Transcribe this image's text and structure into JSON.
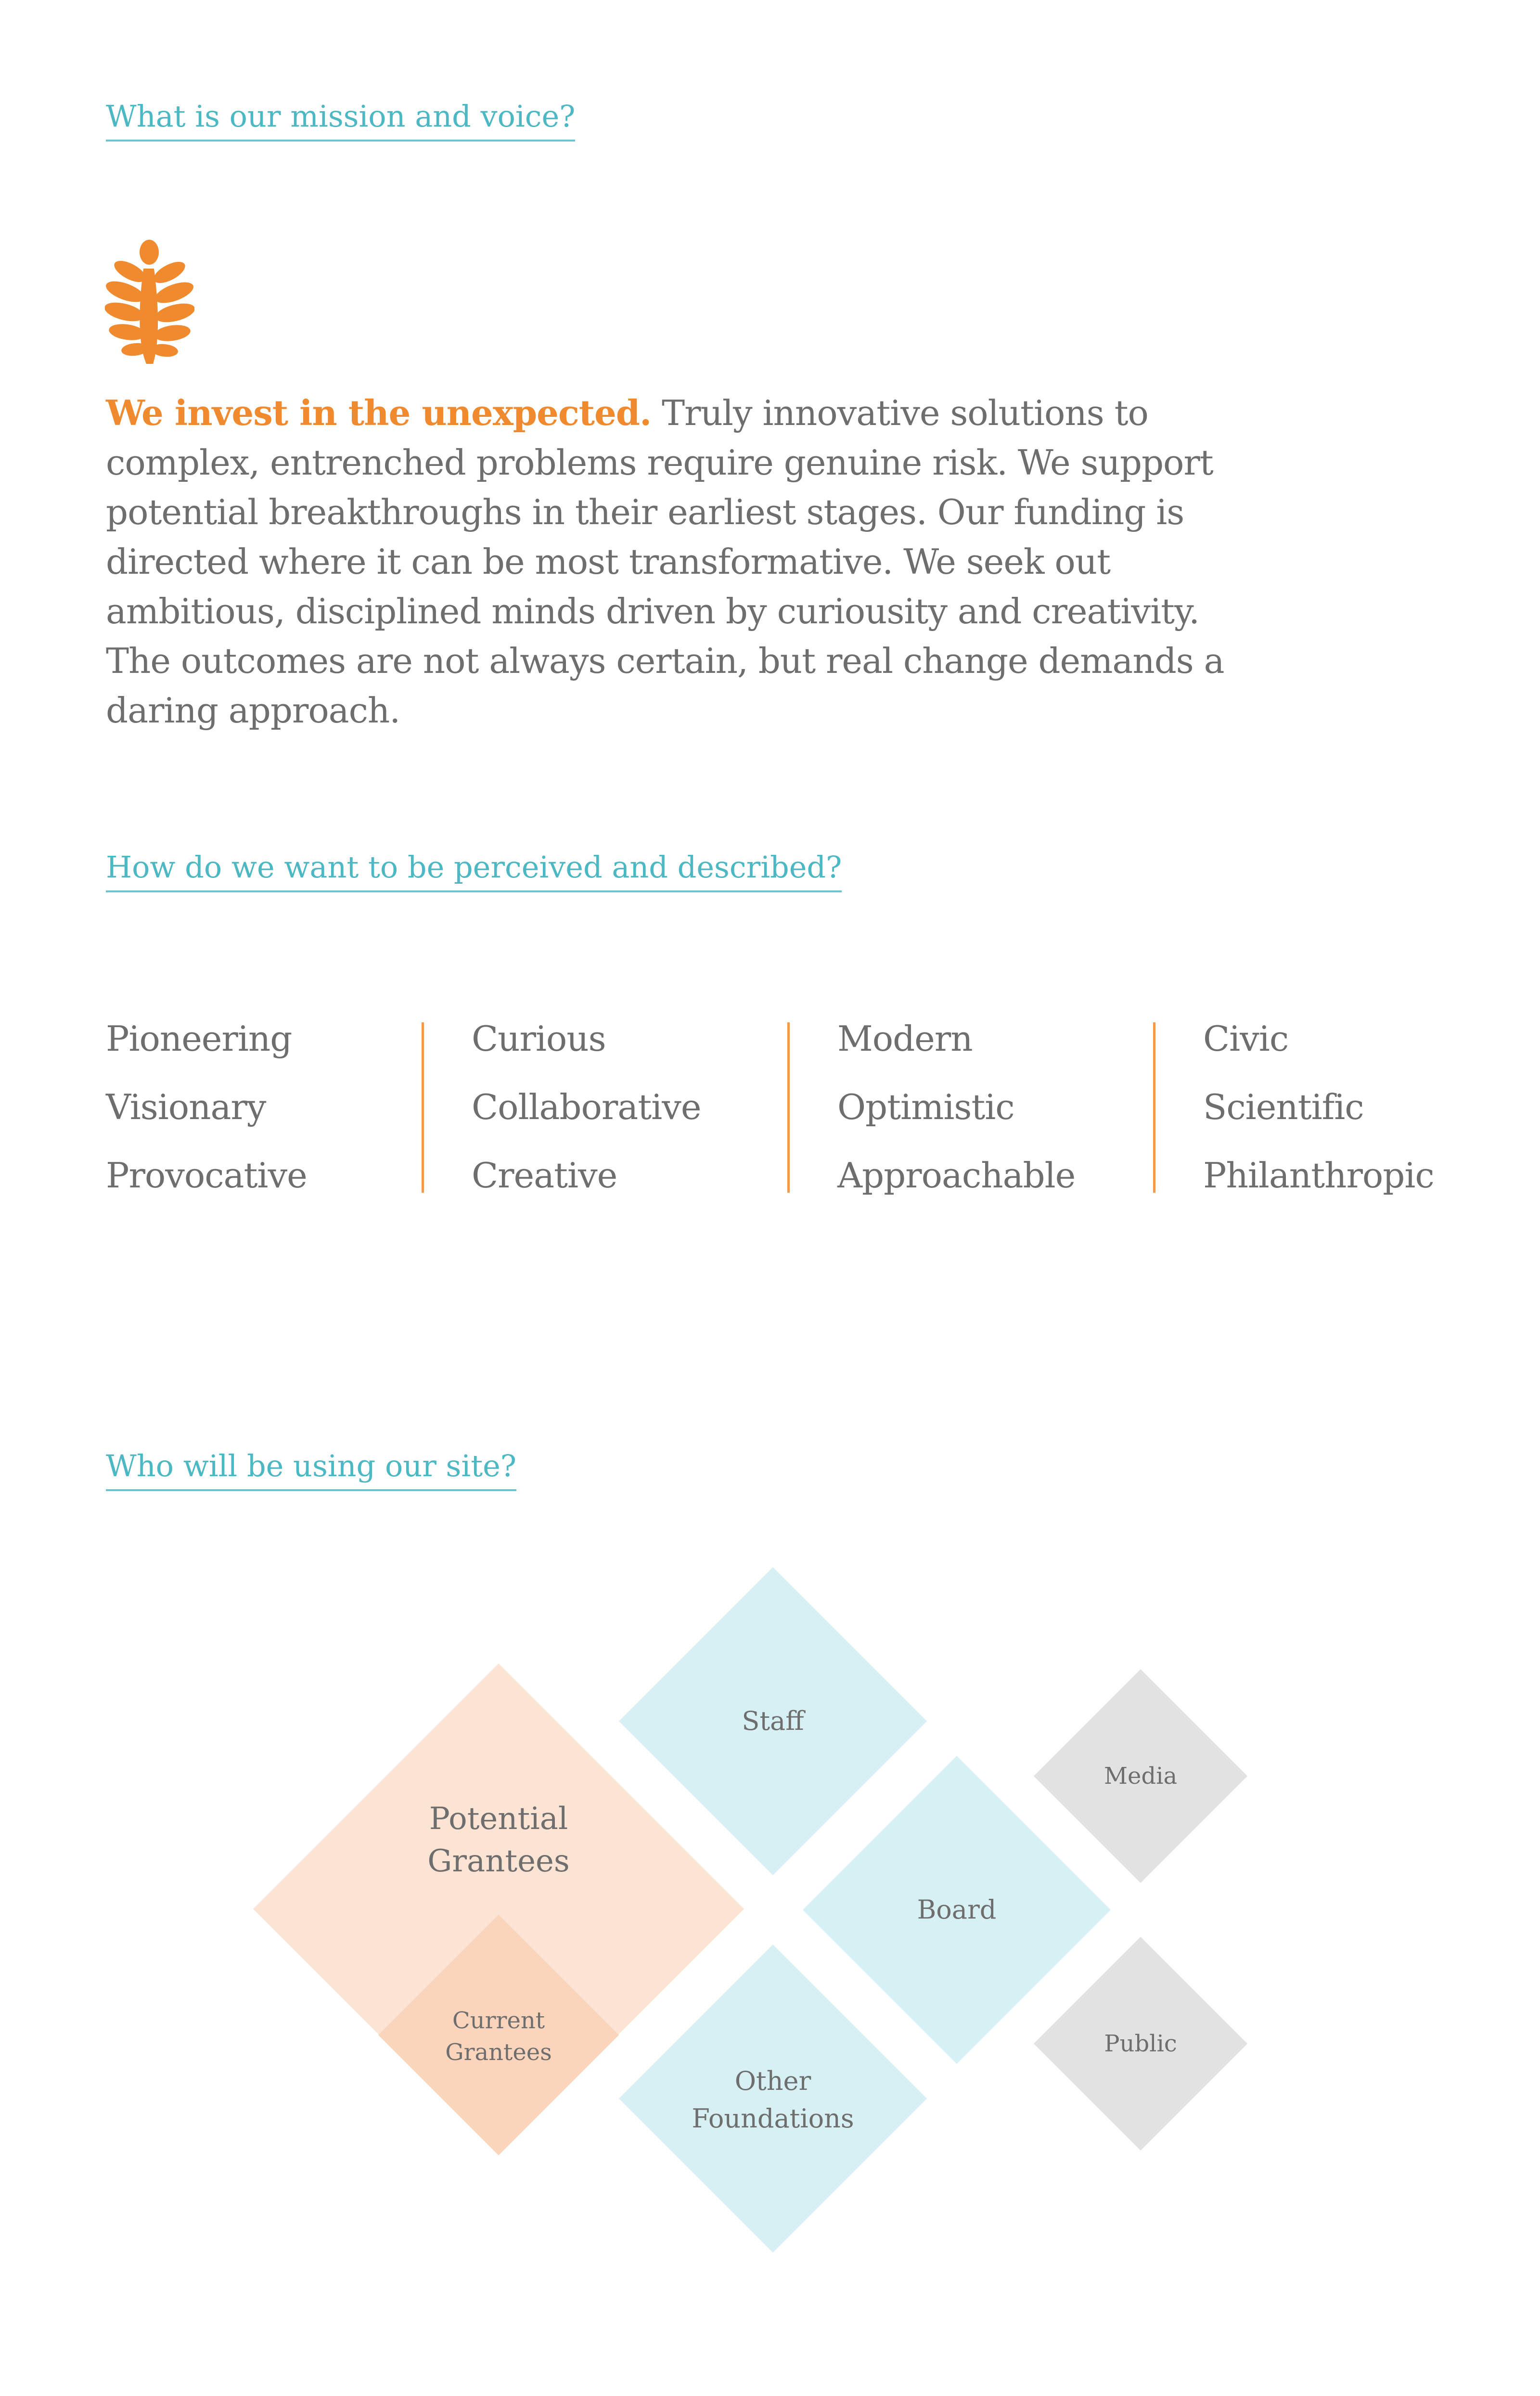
{
  "sections": {
    "mission_heading": "What is our mission and voice?",
    "perception_heading": "How do we want to be perceived and described?",
    "users_heading": "Who will be using our site?"
  },
  "mission": {
    "lead": "We invest in the unexpected.",
    "body": " Truly innovative solutions to complex, entrenched problems require genuine risk. We support potential breakthroughs in their earliest stages. Our funding is directed where it can be most transformative. We seek out ambitious, disciplined minds driven by curiousity and creativity. The outcomes are not always certain, but real change demands a daring approach."
  },
  "traits": [
    [
      "Pioneering",
      "Visionary",
      "Provocative"
    ],
    [
      "Curious",
      "Collaborative",
      "Creative"
    ],
    [
      "Modern",
      "Optimistic",
      "Approachable"
    ],
    [
      "Civic",
      "Scientific",
      "Philanthropic"
    ]
  ],
  "audiences": {
    "potential_grantees": [
      "Potential",
      "Grantees"
    ],
    "current_grantees": [
      "Current",
      "Grantees"
    ],
    "staff": "Staff",
    "board": "Board",
    "other_foundations": [
      "Other",
      "Foundations"
    ],
    "media": "Media",
    "public": "Public"
  },
  "colors": {
    "accent_orange": "#f08a2f",
    "heading_teal": "#4cb8c4",
    "peach": "#fbe4d3",
    "peach_dark": "#fbd5bb",
    "aqua": "#d6f0f3",
    "grey": "#e2e2e2",
    "text": "#6e6e6e"
  },
  "icons": {
    "logo": "leaf-icon"
  }
}
